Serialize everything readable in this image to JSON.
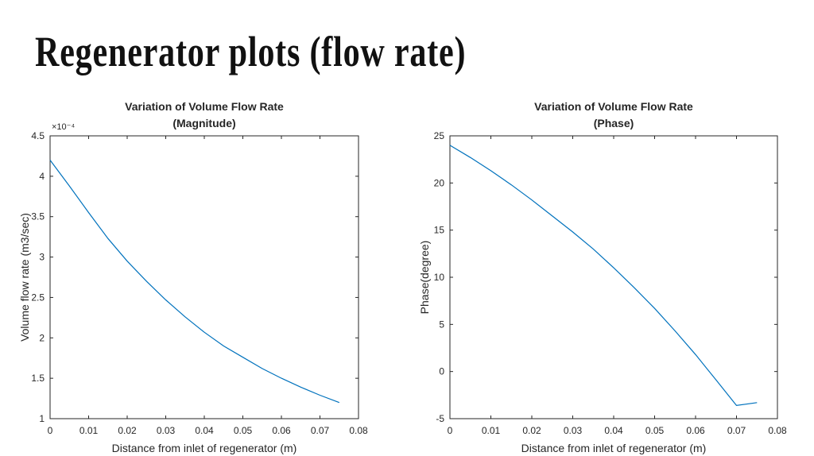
{
  "slide": {
    "title": "Regenerator plots (flow rate)"
  },
  "chart_data": [
    {
      "type": "line",
      "title": "Variation of Volume Flow Rate",
      "subtitle": "(Magnitude)",
      "xlabel": "Distance from inlet of regenerator (m)",
      "ylabel": "Volume flow rate (m3/sec)",
      "y_exponent_label": "×10⁻⁴",
      "xlim": [
        0,
        0.08
      ],
      "ylim": [
        1,
        4.5
      ],
      "xticks": [
        0,
        0.01,
        0.02,
        0.03,
        0.04,
        0.05,
        0.06,
        0.07,
        0.08
      ],
      "xtick_labels": [
        "0",
        "0.01",
        "0.02",
        "0.03",
        "0.04",
        "0.05",
        "0.06",
        "0.07",
        "0.08"
      ],
      "yticks": [
        1,
        1.5,
        2,
        2.5,
        3,
        3.5,
        4,
        4.5
      ],
      "ytick_labels": [
        "1",
        "1.5",
        "2",
        "2.5",
        "3",
        "3.5",
        "4",
        "4.5"
      ],
      "grid": false,
      "line_color": "#0072bd",
      "series": [
        {
          "name": "Magnitude",
          "x": [
            0,
            0.005,
            0.01,
            0.015,
            0.02,
            0.025,
            0.03,
            0.035,
            0.04,
            0.045,
            0.05,
            0.055,
            0.06,
            0.065,
            0.07,
            0.075
          ],
          "y": [
            4.2,
            3.88,
            3.55,
            3.23,
            2.95,
            2.7,
            2.47,
            2.26,
            2.07,
            1.9,
            1.76,
            1.62,
            1.5,
            1.39,
            1.29,
            1.2
          ]
        }
      ]
    },
    {
      "type": "line",
      "title": "Variation of Volume Flow Rate",
      "subtitle": "(Phase)",
      "xlabel": "Distance from inlet of regenerator (m)",
      "ylabel": "Phase(degree)",
      "xlim": [
        0,
        0.08
      ],
      "ylim": [
        -5,
        25
      ],
      "xticks": [
        0,
        0.01,
        0.02,
        0.03,
        0.04,
        0.05,
        0.06,
        0.07,
        0.08
      ],
      "xtick_labels": [
        "0",
        "0.01",
        "0.02",
        "0.03",
        "0.04",
        "0.05",
        "0.06",
        "0.07",
        "0.08"
      ],
      "yticks": [
        -5,
        0,
        5,
        10,
        15,
        20,
        25
      ],
      "ytick_labels": [
        "-5",
        "0",
        "5",
        "10",
        "15",
        "20",
        "25"
      ],
      "grid": false,
      "line_color": "#0072bd",
      "series": [
        {
          "name": "Phase",
          "x": [
            0,
            0.005,
            0.01,
            0.015,
            0.02,
            0.025,
            0.03,
            0.035,
            0.04,
            0.045,
            0.05,
            0.055,
            0.06,
            0.065,
            0.07,
            0.075
          ],
          "y": [
            24,
            22.7,
            21.3,
            19.8,
            18.2,
            16.5,
            14.8,
            13,
            11,
            8.9,
            6.7,
            4.3,
            1.8,
            -0.9,
            -3.6,
            -3.3
          ]
        }
      ]
    }
  ]
}
